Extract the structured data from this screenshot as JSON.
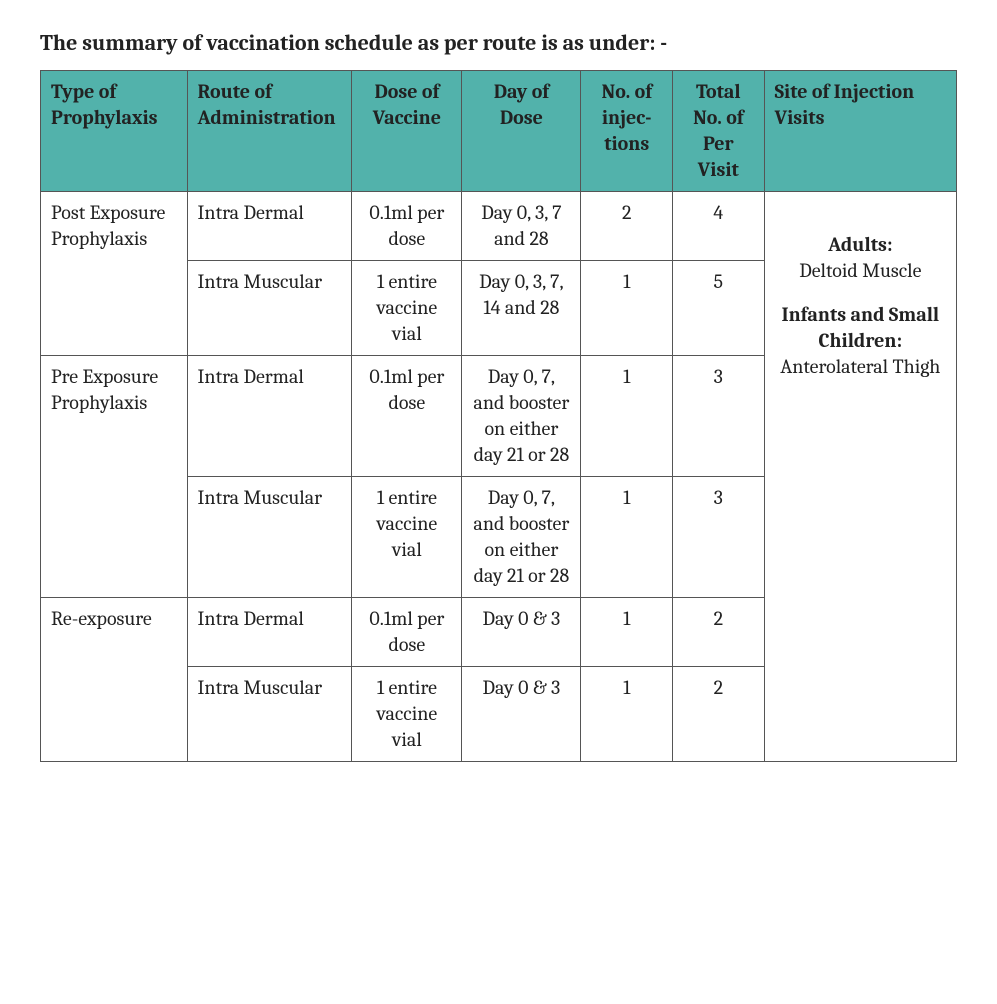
{
  "title": "The summary of vaccination schedule as per route is as under: -",
  "columns": {
    "c1": "Type of Prophylaxis",
    "c2": "Route of Administration",
    "c3": "Dose of Vaccine",
    "c4": "Day of Dose",
    "c5": "No. of injec- tions",
    "c6": "Total No. of Per Visit",
    "c7": "Site of Injection Visits"
  },
  "groups": [
    {
      "type": "Post Exposure Prophylaxis",
      "rows": [
        {
          "route": "Intra Dermal",
          "dose": "0.1ml per dose",
          "day": "Day 0, 3, 7 and 28",
          "inj": "2",
          "visits": "4"
        },
        {
          "route": "Intra Muscular",
          "dose": "1 entire vaccine vial",
          "day": "Day 0, 3, 7, 14 and 28",
          "inj": "1",
          "visits": "5"
        }
      ]
    },
    {
      "type": "Pre Exposure Prophylaxis",
      "rows": [
        {
          "route": "Intra Dermal",
          "dose": "0.1ml per dose",
          "day": "Day 0, 7, and booster on either day 21 or 28",
          "inj": "1",
          "visits": "3"
        },
        {
          "route": "Intra Muscular",
          "dose": "1 entire vaccine vial",
          "day": "Day 0, 7, and booster on either day  21 or 28",
          "inj": "1",
          "visits": "3"
        }
      ]
    },
    {
      "type": "Re-exposure",
      "rows": [
        {
          "route": "Intra Dermal",
          "dose": "0.1ml per dose",
          "day": "Day 0 & 3",
          "inj": "1",
          "visits": "2"
        },
        {
          "route": "Intra Muscular",
          "dose": "1 entire vaccine vial",
          "day": "Day 0 & 3",
          "inj": "1",
          "visits": "2"
        }
      ]
    }
  ],
  "site": {
    "adults_label": "Adults:",
    "adults_value": "Deltoid Muscle",
    "children_label": "Infants and Small Children:",
    "children_value": "Anterolateral Thigh"
  },
  "style": {
    "header_bg": "#52b2ab",
    "border_color": "#555555",
    "text_color": "#222222",
    "background": "#ffffff",
    "title_fontsize": 22,
    "cell_fontsize": 20,
    "col_widths_pct": [
      16,
      18,
      12,
      13,
      10,
      10,
      21
    ]
  }
}
